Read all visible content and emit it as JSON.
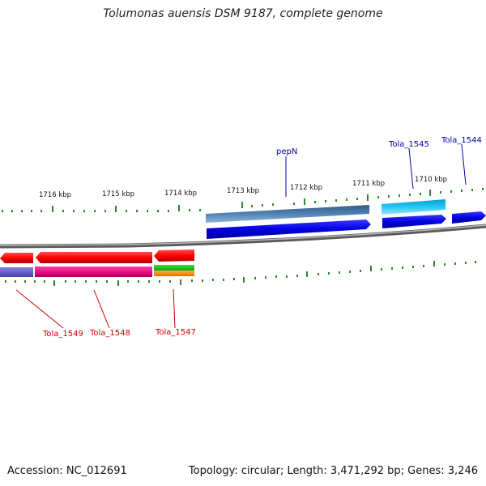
{
  "title": "Tolumonas auensis DSM 9187, complete genome",
  "footer": {
    "accession": "Accession: NC_012691",
    "summary": "Topology: circular; Length: 3,471,292 bp; Genes: 3,246"
  },
  "ticks": [
    {
      "label": "1716 kbp"
    },
    {
      "label": "1715 kbp"
    },
    {
      "label": "1714 kbp"
    },
    {
      "label": "1713 kbp"
    },
    {
      "label": "1712 kbp"
    },
    {
      "label": "1711 kbp"
    },
    {
      "label": "1710 kbp"
    }
  ],
  "genes": [
    {
      "label": "pepN",
      "strand": "+",
      "color": "#0000cc"
    },
    {
      "label": "Tola_1545",
      "strand": "+",
      "color": "#0000cc"
    },
    {
      "label": "Tola_1544",
      "strand": "+",
      "color": "#0000cc"
    },
    {
      "label": "Tola_1549",
      "strand": "-",
      "color": "#cc0000"
    },
    {
      "label": "Tola_1548",
      "strand": "-",
      "color": "#cc0000"
    },
    {
      "label": "Tola_1547",
      "strand": "-",
      "color": "#cc0000"
    }
  ]
}
